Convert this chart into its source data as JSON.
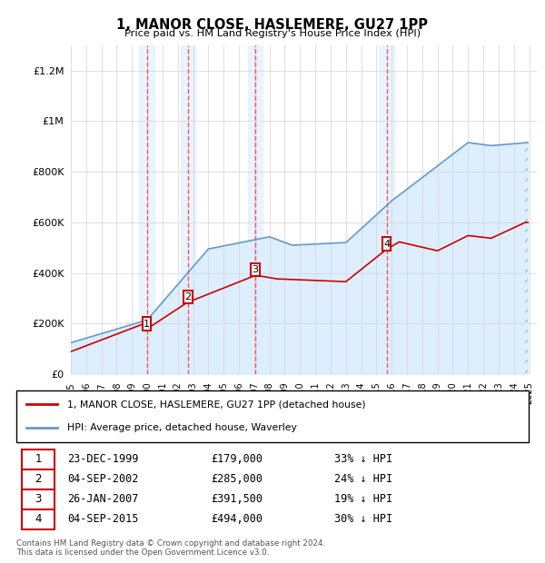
{
  "title": "1, MANOR CLOSE, HASLEMERE, GU27 1PP",
  "subtitle": "Price paid vs. HM Land Registry's House Price Index (HPI)",
  "xlim_start": 1995.0,
  "xlim_end": 2025.5,
  "ylim": [
    0,
    1300000
  ],
  "yticks": [
    0,
    200000,
    400000,
    600000,
    800000,
    1000000,
    1200000
  ],
  "ytick_labels": [
    "£0",
    "£200K",
    "£400K",
    "£600K",
    "£800K",
    "£1M",
    "£1.2M"
  ],
  "xtick_years": [
    1995,
    1996,
    1997,
    1998,
    1999,
    2000,
    2001,
    2002,
    2003,
    2004,
    2005,
    2006,
    2007,
    2008,
    2009,
    2010,
    2011,
    2012,
    2013,
    2014,
    2015,
    2016,
    2017,
    2018,
    2019,
    2020,
    2021,
    2022,
    2023,
    2024,
    2025
  ],
  "sale_dates": [
    1999.97,
    2002.67,
    2007.07,
    2015.67
  ],
  "sale_prices": [
    179000,
    285000,
    391500,
    494000
  ],
  "sale_labels": [
    "1",
    "2",
    "3",
    "4"
  ],
  "red_line_color": "#cc0000",
  "blue_line_color": "#6699cc",
  "blue_fill_color": "#ddeeff",
  "vline_color": "#ff4444",
  "legend_red_label": "1, MANOR CLOSE, HASLEMERE, GU27 1PP (detached house)",
  "legend_blue_label": "HPI: Average price, detached house, Waverley",
  "table_rows": [
    {
      "num": "1",
      "date": "23-DEC-1999",
      "price": "£179,000",
      "pct": "33% ↓ HPI"
    },
    {
      "num": "2",
      "date": "04-SEP-2002",
      "price": "£285,000",
      "pct": "24% ↓ HPI"
    },
    {
      "num": "3",
      "date": "26-JAN-2007",
      "price": "£391,500",
      "pct": "19% ↓ HPI"
    },
    {
      "num": "4",
      "date": "04-SEP-2015",
      "price": "£494,000",
      "pct": "30% ↓ HPI"
    }
  ],
  "footer": "Contains HM Land Registry data © Crown copyright and database right 2024.\nThis data is licensed under the Open Government Licence v3.0.",
  "hatch_start": 2024.75
}
